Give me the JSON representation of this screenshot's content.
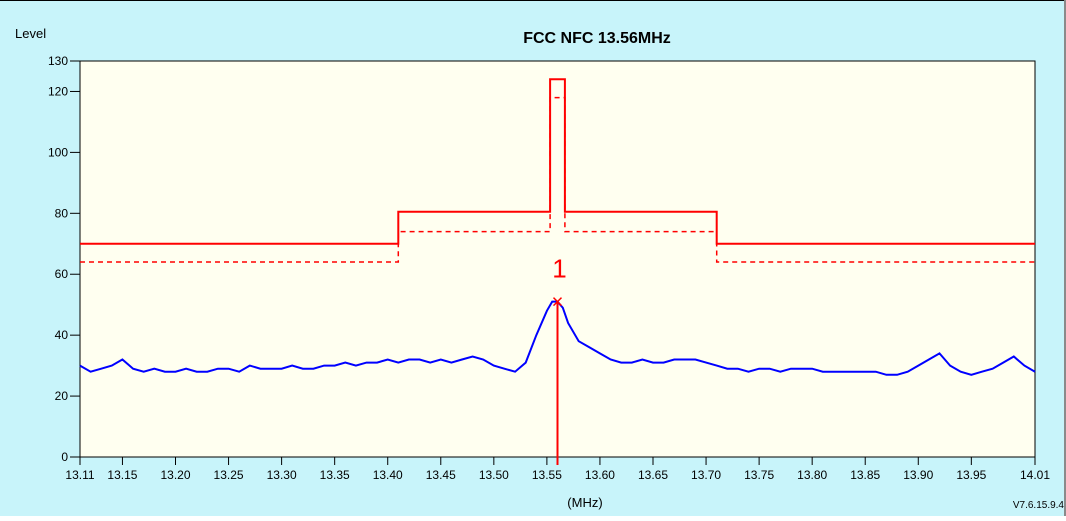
{
  "colors": {
    "panel_background": "#c8f4fa",
    "plot_background": "#fffff0",
    "limit_line": "#ff0000",
    "trace": "#0000ff",
    "marker": "#ff0000",
    "axis": "#000000"
  },
  "chart_data": {
    "type": "line",
    "title": "FCC  NFC 13.56MHz",
    "ylabel": "Level",
    "xlabel": "(MHz)",
    "version_label": "V7.6.15.9.4",
    "xlim": [
      13.11,
      14.01
    ],
    "ylim": [
      0,
      130
    ],
    "x_tick_labels": [
      "13.11",
      "13.15",
      "13.20",
      "13.25",
      "13.30",
      "13.35",
      "13.40",
      "13.45",
      "13.50",
      "13.55",
      "13.60",
      "13.65",
      "13.70",
      "13.75",
      "13.80",
      "13.85",
      "13.90",
      "13.95",
      "14.01"
    ],
    "x_ticks": [
      13.11,
      13.15,
      13.2,
      13.25,
      13.3,
      13.35,
      13.4,
      13.45,
      13.5,
      13.55,
      13.6,
      13.65,
      13.7,
      13.75,
      13.8,
      13.85,
      13.9,
      13.95,
      14.01
    ],
    "y_tick_labels": [
      "0",
      "20",
      "40",
      "60",
      "80",
      "100",
      "120",
      "130"
    ],
    "y_ticks": [
      0,
      20,
      40,
      60,
      80,
      100,
      120,
      130
    ],
    "grid": false,
    "series": [
      {
        "style": "solid",
        "color": "#ff0000",
        "x": [
          13.11,
          13.41,
          13.41,
          13.553,
          13.553,
          13.567,
          13.567,
          13.71,
          13.71,
          14.01
        ],
        "values": [
          70,
          70,
          80.5,
          80.5,
          124,
          124,
          80.5,
          80.5,
          70,
          70
        ]
      },
      {
        "style": "dashed",
        "color": "#ff0000",
        "x": [
          13.11,
          13.41,
          13.41,
          13.553,
          13.553,
          13.567,
          13.567,
          13.71,
          13.71,
          14.01
        ],
        "values": [
          64,
          64,
          74,
          74,
          118,
          118,
          74,
          74,
          64,
          64
        ]
      },
      {
        "style": "solid",
        "color": "#0000ff",
        "x": [
          13.11,
          13.12,
          13.13,
          13.14,
          13.15,
          13.16,
          13.17,
          13.18,
          13.19,
          13.2,
          13.21,
          13.22,
          13.23,
          13.24,
          13.25,
          13.26,
          13.27,
          13.28,
          13.29,
          13.3,
          13.31,
          13.32,
          13.33,
          13.34,
          13.35,
          13.36,
          13.37,
          13.38,
          13.39,
          13.4,
          13.41,
          13.42,
          13.43,
          13.44,
          13.45,
          13.46,
          13.47,
          13.48,
          13.49,
          13.5,
          13.51,
          13.52,
          13.53,
          13.54,
          13.55,
          13.555,
          13.56,
          13.565,
          13.57,
          13.58,
          13.59,
          13.6,
          13.61,
          13.62,
          13.63,
          13.64,
          13.65,
          13.66,
          13.67,
          13.68,
          13.69,
          13.7,
          13.71,
          13.72,
          13.73,
          13.74,
          13.75,
          13.76,
          13.77,
          13.78,
          13.79,
          13.8,
          13.81,
          13.82,
          13.83,
          13.84,
          13.85,
          13.86,
          13.87,
          13.88,
          13.89,
          13.9,
          13.91,
          13.92,
          13.93,
          13.94,
          13.95,
          13.96,
          13.97,
          13.98,
          13.99,
          14.0,
          14.01
        ],
        "values": [
          30,
          28,
          29,
          30,
          32,
          29,
          28,
          29,
          28,
          28,
          29,
          28,
          28,
          29,
          29,
          28,
          30,
          29,
          29,
          29,
          30,
          29,
          29,
          30,
          30,
          31,
          30,
          31,
          31,
          32,
          31,
          32,
          32,
          31,
          32,
          31,
          32,
          33,
          32,
          30,
          29,
          28,
          31,
          40,
          48,
          51,
          51,
          49,
          44,
          38,
          36,
          34,
          32,
          31,
          31,
          32,
          31,
          31,
          32,
          32,
          32,
          31,
          30,
          29,
          29,
          28,
          29,
          29,
          28,
          29,
          29,
          29,
          28,
          28,
          28,
          28,
          28,
          28,
          27,
          27,
          28,
          30,
          32,
          34,
          30,
          28,
          27,
          28,
          29,
          31,
          33,
          30,
          28
        ]
      }
    ],
    "marker": {
      "x": 13.56,
      "y": 51,
      "label": "1"
    }
  }
}
